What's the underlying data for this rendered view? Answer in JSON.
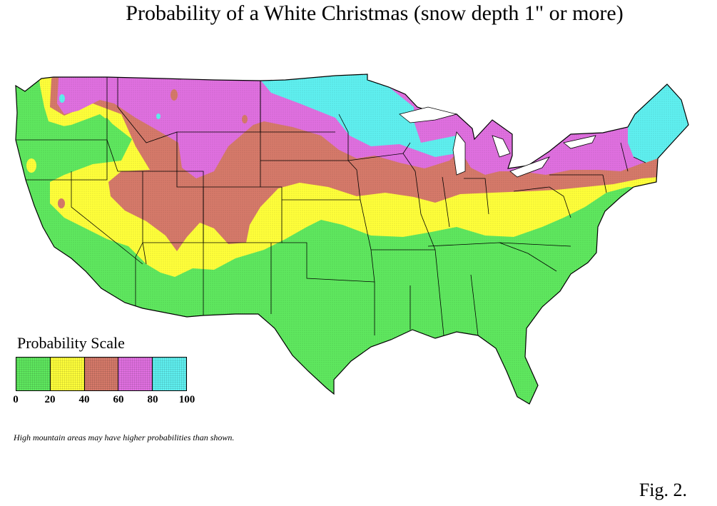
{
  "title": "Probability of a White Christmas (snow depth 1\" or more)",
  "legend": {
    "title": "Probability Scale",
    "ticks": [
      "0",
      "20",
      "40",
      "60",
      "80",
      "100"
    ],
    "bins": [
      {
        "range": [
          0,
          20
        ],
        "color": "#5fe85f"
      },
      {
        "range": [
          20,
          40
        ],
        "color": "#ffff3a"
      },
      {
        "range": [
          40,
          60
        ],
        "color": "#d67a6a"
      },
      {
        "range": [
          60,
          80
        ],
        "color": "#e070e0"
      },
      {
        "range": [
          80,
          100
        ],
        "color": "#5ff0f0"
      }
    ]
  },
  "note": "High mountain areas may have higher probabilities than shown.",
  "figure_label": "Fig. 2."
}
